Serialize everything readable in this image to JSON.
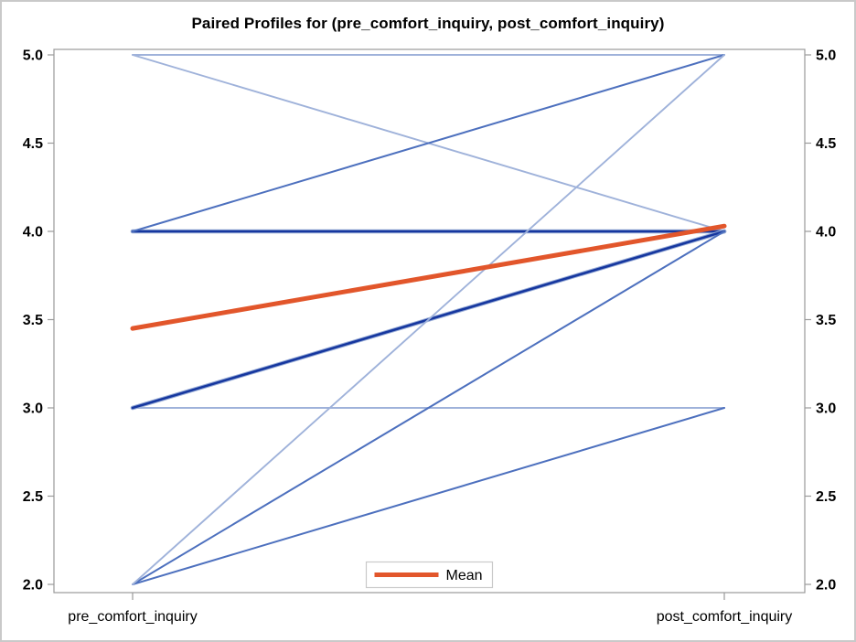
{
  "chart_data": {
    "type": "line",
    "variant": "paired-profiles",
    "title": "Paired Profiles for (pre_comfort_inquiry, post_comfort_inquiry)",
    "x_categories": [
      "pre_comfort_inquiry",
      "post_comfort_inquiry"
    ],
    "y_ticks": [
      "2.0",
      "2.5",
      "3.0",
      "3.5",
      "4.0",
      "4.5",
      "5.0"
    ],
    "ylim": [
      2.0,
      5.0
    ],
    "grid": "off",
    "legend_position": "bottom-center",
    "pairs": [
      {
        "pre": 5,
        "post": 5,
        "shade": "light"
      },
      {
        "pre": 5,
        "post": 4,
        "shade": "light"
      },
      {
        "pre": 4,
        "post": 4,
        "shade": "dark"
      },
      {
        "pre": 4,
        "post": 5,
        "shade": "medium"
      },
      {
        "pre": 3,
        "post": 3,
        "shade": "light"
      },
      {
        "pre": 3,
        "post": 4,
        "shade": "dark"
      },
      {
        "pre": 2,
        "post": 3,
        "shade": "medium"
      },
      {
        "pre": 2,
        "post": 4,
        "shade": "medium"
      },
      {
        "pre": 2,
        "post": 5,
        "shade": "light"
      }
    ],
    "mean": {
      "pre": 3.45,
      "post": 4.03,
      "label": "Mean"
    },
    "colors": {
      "line_light": "#9fb2da",
      "line_medium": "#4d70be",
      "line_dark": "#16379f",
      "line_dark_halo": "#97abd6",
      "mean": "#e2562b",
      "frame": "#9a9a9a",
      "figure_border": "#c9c9c9",
      "legend_border": "#c9c9c9",
      "text": "#000000"
    }
  }
}
